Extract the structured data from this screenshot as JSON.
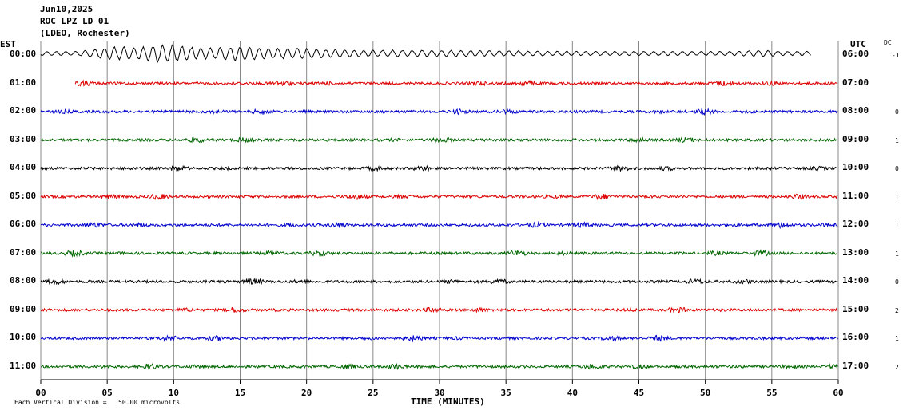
{
  "header": {
    "date": "Jun10,2025",
    "channel": "ROC LPZ LD 01",
    "station": "(LDEO, Rochester)"
  },
  "left_zone": "EST",
  "right_zone": "UTC",
  "dc_label": "DC",
  "footer": {
    "scale_note": "Each Vertical Division =   50.00 microvolts",
    "xlabel": "TIME (MINUTES)"
  },
  "colors": {
    "black": "#000000",
    "red": "#dd0000",
    "blue": "#0000cc",
    "green": "#006600",
    "grid": "#888888"
  },
  "chart_data": {
    "type": "line",
    "title": "",
    "xlabel": "TIME (MINUTES)",
    "ylabel": "",
    "xlim": [
      0,
      60
    ],
    "x_ticks": [
      "00",
      "05",
      "10",
      "15",
      "20",
      "25",
      "30",
      "35",
      "40",
      "45",
      "50",
      "55",
      "60"
    ],
    "grid": true,
    "rows": [
      {
        "est": "00:00",
        "utc": "06:00",
        "dc": "-1",
        "color": "black",
        "start_min": 0.0,
        "end_min": 58.0,
        "event": true
      },
      {
        "est": "01:00",
        "utc": "07:00",
        "dc": "",
        "color": "red",
        "start_min": 2.6,
        "end_min": 60.0
      },
      {
        "est": "02:00",
        "utc": "08:00",
        "dc": "0",
        "color": "blue",
        "start_min": 0.0,
        "end_min": 60.0
      },
      {
        "est": "03:00",
        "utc": "09:00",
        "dc": "1",
        "color": "green",
        "start_min": 0.0,
        "end_min": 60.0
      },
      {
        "est": "04:00",
        "utc": "10:00",
        "dc": "0",
        "color": "black",
        "start_min": 0.0,
        "end_min": 60.0
      },
      {
        "est": "05:00",
        "utc": "11:00",
        "dc": "1",
        "color": "red",
        "start_min": 0.0,
        "end_min": 60.0
      },
      {
        "est": "06:00",
        "utc": "12:00",
        "dc": "1",
        "color": "blue",
        "start_min": 0.0,
        "end_min": 60.0
      },
      {
        "est": "07:00",
        "utc": "13:00",
        "dc": "1",
        "color": "green",
        "start_min": 0.0,
        "end_min": 60.0
      },
      {
        "est": "08:00",
        "utc": "14:00",
        "dc": "0",
        "color": "black",
        "start_min": 0.0,
        "end_min": 60.0
      },
      {
        "est": "09:00",
        "utc": "15:00",
        "dc": "2",
        "color": "red",
        "start_min": 0.0,
        "end_min": 60.0
      },
      {
        "est": "10:00",
        "utc": "16:00",
        "dc": "1",
        "color": "blue",
        "start_min": 0.0,
        "end_min": 60.0
      },
      {
        "est": "11:00",
        "utc": "17:00",
        "dc": "2",
        "color": "green",
        "start_min": 0.0,
        "end_min": 60.0
      }
    ]
  }
}
